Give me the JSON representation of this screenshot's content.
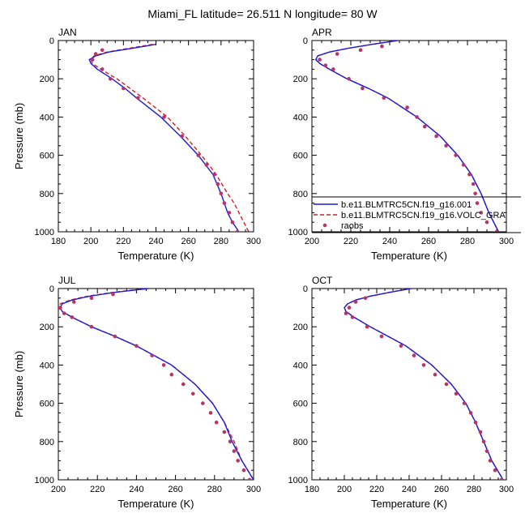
{
  "figure": {
    "title": "Miami_FL  latitude= 26.511 N longitude= 80 W"
  },
  "legend": {
    "entries": [
      {
        "label": "b.e11.BLMTRC5CN.f19_g16.001",
        "color": "#1a1adb",
        "style": "solid"
      },
      {
        "label": "b.e11.BLMTRC5CN.f19_g16.VOLC_GRA",
        "color": "#dd1c1c",
        "style": "dashed"
      },
      {
        "label": "raobs",
        "color": "#b8336a",
        "style": "marker"
      }
    ]
  },
  "chart_data": [
    {
      "type": "line",
      "panel": "JAN",
      "xlabel": "Temperature (K)",
      "ylabel": "Pressure (mb)",
      "xlim": [
        180,
        300
      ],
      "ylim": [
        1000,
        0
      ],
      "xticks": [
        180,
        200,
        220,
        240,
        260,
        280,
        300
      ],
      "yticks": [
        0,
        200,
        400,
        600,
        800,
        1000
      ],
      "series": [
        {
          "key": "case1",
          "pressure": [
            20,
            40,
            60,
            80,
            100,
            120,
            150,
            200,
            250,
            300,
            400,
            500,
            600,
            700,
            800,
            850,
            900,
            950,
            1000
          ],
          "temperature": [
            240,
            226,
            211,
            203,
            199,
            200,
            204,
            213,
            221,
            228,
            243,
            255,
            266,
            275,
            280,
            282,
            284,
            287,
            291
          ]
        },
        {
          "key": "case2",
          "pressure": [
            20,
            40,
            60,
            80,
            100,
            120,
            150,
            200,
            250,
            300,
            400,
            500,
            600,
            700,
            800,
            850,
            900,
            950,
            1000
          ],
          "temperature": [
            238,
            224,
            210,
            202,
            200,
            201,
            206,
            216,
            224,
            232,
            247,
            258,
            268,
            277,
            284,
            288,
            291,
            294,
            297
          ]
        },
        {
          "key": "raobs",
          "pressure": [
            50,
            70,
            100,
            150,
            200,
            250,
            300,
            400,
            500,
            600,
            650,
            700,
            750,
            800,
            850,
            900,
            950,
            1000
          ],
          "temperature": [
            207,
            203,
            201,
            207,
            212,
            220,
            229,
            245,
            256,
            266,
            271,
            276,
            278,
            280,
            282,
            285,
            287,
            290
          ]
        }
      ]
    },
    {
      "type": "line",
      "panel": "APR",
      "xlabel": "Temperature (K)",
      "ylabel": "",
      "xlim": [
        200,
        300
      ],
      "ylim": [
        1000,
        0
      ],
      "xticks": [
        200,
        220,
        240,
        260,
        280,
        300
      ],
      "yticks": [
        0,
        200,
        400,
        600,
        800,
        1000
      ],
      "series": [
        {
          "key": "case1",
          "pressure": [
            0,
            20,
            40,
            60,
            80,
            100,
            120,
            150,
            200,
            250,
            300,
            400,
            500,
            600,
            700,
            800,
            900,
            1000
          ],
          "temperature": [
            244,
            231,
            219,
            209,
            203,
            202,
            204,
            209,
            218,
            229,
            239,
            254,
            266,
            275,
            282,
            287,
            291,
            296
          ]
        },
        {
          "key": "case2",
          "pressure": [
            0,
            20,
            40,
            60,
            80,
            100,
            120,
            150,
            200,
            250,
            300,
            400,
            500,
            600,
            700,
            800,
            900,
            1000
          ],
          "temperature": [
            244,
            231,
            219,
            209,
            203,
            202,
            204,
            209,
            218,
            229,
            239,
            254,
            266,
            275,
            282,
            287,
            291,
            296
          ]
        },
        {
          "key": "raobs",
          "pressure": [
            30,
            50,
            70,
            100,
            130,
            150,
            200,
            250,
            300,
            350,
            400,
            450,
            500,
            550,
            600,
            650,
            700,
            750,
            800,
            850,
            900,
            950,
            1000
          ],
          "temperature": [
            236,
            225,
            213,
            204,
            207,
            211,
            219,
            226,
            237,
            249,
            254,
            258,
            264,
            269,
            274,
            278,
            281,
            283,
            284,
            285,
            287,
            290,
            295
          ]
        }
      ]
    },
    {
      "type": "line",
      "panel": "JUL",
      "xlabel": "Temperature (K)",
      "ylabel": "Pressure (mb)",
      "xlim": [
        200,
        300
      ],
      "ylim": [
        1000,
        0
      ],
      "xticks": [
        200,
        220,
        240,
        260,
        280,
        300
      ],
      "yticks": [
        0,
        200,
        400,
        600,
        800,
        1000
      ],
      "series": [
        {
          "key": "case1",
          "pressure": [
            0,
            20,
            40,
            60,
            80,
            100,
            120,
            150,
            200,
            250,
            300,
            400,
            500,
            600,
            700,
            800,
            900,
            1000
          ],
          "temperature": [
            246,
            229,
            216,
            207,
            202,
            201,
            202,
            207,
            217,
            229,
            240,
            258,
            270,
            279,
            285,
            289,
            294,
            300
          ]
        },
        {
          "key": "case2",
          "pressure": [
            0,
            20,
            40,
            60,
            80,
            100,
            120,
            150,
            200,
            250,
            300,
            400,
            500,
            600,
            700,
            800,
            900,
            1000
          ],
          "temperature": [
            245,
            228,
            215,
            206,
            201,
            200,
            202,
            207,
            217,
            229,
            240,
            258,
            270,
            279,
            285,
            290,
            294,
            300
          ]
        },
        {
          "key": "raobs",
          "pressure": [
            30,
            50,
            70,
            100,
            130,
            150,
            200,
            250,
            300,
            350,
            400,
            450,
            500,
            550,
            600,
            650,
            700,
            750,
            800,
            850,
            900,
            950,
            1000
          ],
          "temperature": [
            228,
            217,
            208,
            201,
            203,
            207,
            217,
            229,
            240,
            248,
            254,
            258,
            264,
            269,
            274,
            278,
            281,
            285,
            288,
            290,
            292,
            295,
            298
          ]
        }
      ]
    },
    {
      "type": "line",
      "panel": "OCT",
      "xlabel": "Temperature (K)",
      "ylabel": "",
      "xlim": [
        180,
        300
      ],
      "ylim": [
        1000,
        0
      ],
      "xticks": [
        180,
        200,
        220,
        240,
        260,
        280,
        300
      ],
      "yticks": [
        0,
        200,
        400,
        600,
        800,
        1000
      ],
      "series": [
        {
          "key": "case1",
          "pressure": [
            0,
            20,
            40,
            60,
            80,
            100,
            120,
            150,
            200,
            250,
            300,
            400,
            500,
            600,
            700,
            800,
            900,
            1000
          ],
          "temperature": [
            241,
            228,
            216,
            207,
            202,
            200,
            201,
            206,
            216,
            227,
            238,
            254,
            266,
            275,
            281,
            286,
            291,
            298
          ]
        },
        {
          "key": "case2",
          "pressure": [
            0,
            20,
            40,
            60,
            80,
            100,
            120,
            150,
            200,
            250,
            300,
            400,
            500,
            600,
            700,
            800,
            900,
            1000
          ],
          "temperature": [
            241,
            228,
            216,
            207,
            202,
            200,
            201,
            206,
            216,
            227,
            238,
            254,
            266,
            275,
            281,
            286,
            291,
            298
          ]
        },
        {
          "key": "raobs",
          "pressure": [
            50,
            70,
            100,
            130,
            150,
            200,
            250,
            300,
            350,
            400,
            450,
            500,
            550,
            600,
            650,
            700,
            750,
            800,
            850,
            900,
            950,
            1000
          ],
          "temperature": [
            213,
            207,
            203,
            201,
            205,
            214,
            223,
            235,
            243,
            249,
            256,
            263,
            269,
            274,
            278,
            281,
            284,
            286,
            288,
            290,
            293,
            297
          ]
        }
      ]
    }
  ]
}
